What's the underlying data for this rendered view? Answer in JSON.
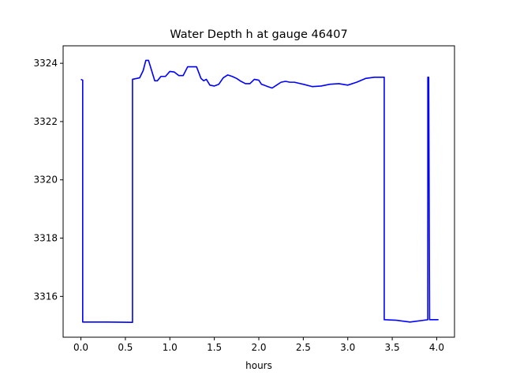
{
  "chart_data": {
    "type": "line",
    "title": "Water Depth h at gauge 46407",
    "xlabel": "hours",
    "ylabel": "",
    "xlim": [
      -0.2,
      4.2
    ],
    "ylim": [
      3314.6,
      3324.6
    ],
    "xticks": [
      0.0,
      0.5,
      1.0,
      1.5,
      2.0,
      2.5,
      3.0,
      3.5,
      4.0
    ],
    "xtick_labels": [
      "0.0",
      "0.5",
      "1.0",
      "1.5",
      "2.0",
      "2.5",
      "3.0",
      "3.5",
      "4.0"
    ],
    "yticks": [
      3316,
      3318,
      3320,
      3322,
      3324
    ],
    "ytick_labels": [
      "3316",
      "3318",
      "3320",
      "3322",
      "3324"
    ],
    "grid": false,
    "series": [
      {
        "color": "#0000ff",
        "x": [
          0.0,
          0.02,
          0.02,
          0.3,
          0.58,
          0.58,
          0.66,
          0.7,
          0.73,
          0.76,
          0.79,
          0.83,
          0.86,
          0.9,
          0.95,
          1.0,
          1.05,
          1.1,
          1.15,
          1.2,
          1.25,
          1.3,
          1.35,
          1.38,
          1.41,
          1.45,
          1.5,
          1.55,
          1.6,
          1.65,
          1.7,
          1.75,
          1.8,
          1.85,
          1.9,
          1.95,
          2.0,
          2.03,
          2.06,
          2.1,
          2.15,
          2.2,
          2.25,
          2.3,
          2.35,
          2.4,
          2.5,
          2.6,
          2.7,
          2.8,
          2.9,
          3.0,
          3.1,
          3.2,
          3.3,
          3.41,
          3.41,
          3.55,
          3.7,
          3.9,
          3.9,
          3.91,
          3.92,
          3.92,
          4.02
        ],
        "y": [
          3323.45,
          3323.42,
          3315.12,
          3315.12,
          3315.11,
          3323.45,
          3323.5,
          3323.75,
          3324.1,
          3324.1,
          3323.8,
          3323.4,
          3323.4,
          3323.55,
          3323.55,
          3323.72,
          3323.7,
          3323.58,
          3323.58,
          3323.88,
          3323.88,
          3323.88,
          3323.48,
          3323.4,
          3323.45,
          3323.25,
          3323.22,
          3323.28,
          3323.5,
          3323.6,
          3323.55,
          3323.48,
          3323.38,
          3323.3,
          3323.3,
          3323.45,
          3323.42,
          3323.28,
          3323.25,
          3323.2,
          3323.15,
          3323.25,
          3323.35,
          3323.38,
          3323.35,
          3323.35,
          3323.28,
          3323.2,
          3323.22,
          3323.28,
          3323.3,
          3323.25,
          3323.35,
          3323.48,
          3323.52,
          3323.52,
          3315.2,
          3315.18,
          3315.12,
          3315.2,
          3323.52,
          3323.52,
          3315.2,
          3315.2,
          3315.2
        ]
      }
    ]
  }
}
